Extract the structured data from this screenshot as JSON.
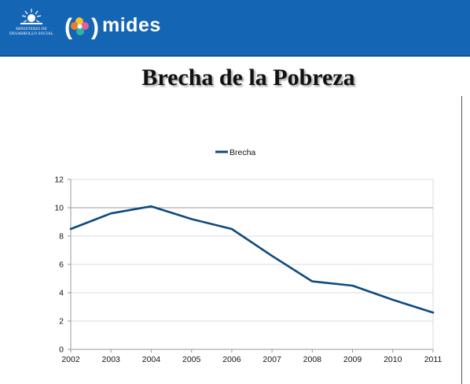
{
  "header": {
    "ministry_lines": [
      "MINISTERIO DE",
      "DESARROLLO SOCIAL"
    ],
    "logo_text": "mides",
    "colors": {
      "bar": "#1565b5"
    }
  },
  "page_title": "Brecha de la Pobreza",
  "chart_data": {
    "type": "line",
    "title": "",
    "xlabel": "",
    "ylabel": "",
    "x": [
      "2002",
      "2003",
      "2004",
      "2005",
      "2006",
      "2007",
      "2008",
      "2009",
      "2010",
      "2011"
    ],
    "series": [
      {
        "name": "Brecha",
        "values": [
          8.5,
          9.6,
          10.1,
          9.2,
          8.5,
          6.6,
          4.8,
          4.5,
          3.5,
          2.6
        ],
        "color": "#0e4a80"
      }
    ],
    "ylim": [
      0,
      12
    ],
    "yticks": [
      0,
      2,
      4,
      6,
      8,
      10,
      12
    ],
    "grid": true,
    "legend": "top-center"
  }
}
